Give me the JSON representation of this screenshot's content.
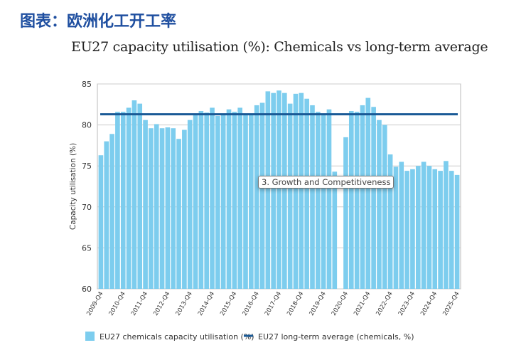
{
  "header": "图表：欧洲化工开工率",
  "chart_data": {
    "type": "bar",
    "title": "EU27 capacity utilisation (%): Chemicals vs long-term average",
    "ylabel": "Capacity utilisation (%)",
    "ylim": [
      60,
      85
    ],
    "yticks": [
      60,
      65,
      70,
      75,
      80,
      85
    ],
    "grid": true,
    "legend_position": "bottom",
    "xticklabels": [
      "2009-Q4",
      "2010-Q4",
      "2011-Q4",
      "2012-Q4",
      "2013-Q4",
      "2014-Q4",
      "2015-Q4",
      "2016-Q4",
      "2017-Q4",
      "2018-Q4",
      "2019-Q4",
      "2020-Q4",
      "2021-Q4",
      "2022-Q4",
      "2023-Q4",
      "2024-Q4",
      "2025-Q4"
    ],
    "series": [
      {
        "name": "EU27 chemicals capacity utilisation (%)",
        "type": "bar",
        "color": "#7dcdee",
        "values": [
          76.3,
          78.0,
          78.9,
          81.6,
          81.6,
          82.1,
          83.0,
          82.6,
          80.6,
          79.6,
          80.1,
          79.6,
          79.7,
          79.6,
          78.3,
          79.4,
          80.6,
          81.4,
          81.7,
          81.5,
          82.1,
          81.1,
          81.4,
          81.9,
          81.6,
          82.1,
          81.4,
          81.4,
          82.4,
          82.7,
          84.1,
          83.9,
          84.2,
          83.9,
          82.6,
          83.8,
          83.9,
          83.2,
          82.4,
          81.6,
          81.4,
          81.9,
          74.3,
          null,
          78.5,
          81.7,
          81.6,
          82.4,
          83.3,
          82.2,
          80.6,
          80.0,
          76.4,
          74.9,
          75.5,
          74.4,
          74.6,
          75.0,
          75.5,
          75.0,
          74.6,
          74.4,
          75.6,
          74.4,
          73.9
        ]
      },
      {
        "name": "EU27 long-term average (chemicals, %)",
        "type": "line",
        "color": "#1a5a96",
        "value": 81.3
      }
    ]
  },
  "tooltip": "3. Growth and Competitiveness"
}
